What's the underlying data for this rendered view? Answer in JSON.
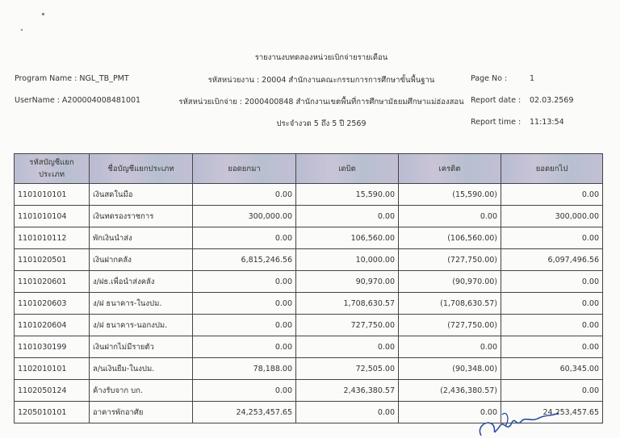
{
  "report": {
    "title": "รายงานงบทดลองหน่วยเบิกจ่ายรายเดือน",
    "program_name": "Program Name : NGL_TB_PMT",
    "user_name": "UserName : A20000400848​1001",
    "agency": "รหัสหน่วยงาน : 20004 สำนักงานคณะกรรมการการศึกษาขั้นพื้นฐาน",
    "disbursing_unit": "รหัสหน่วยเบิกจ่าย : 2000400848 สำนักงานเขตพื้นที่การศึกษามัธยมศึกษาแม่ฮ่องสอน",
    "period": "ประจำงวด 5 ถึง 5 ปี 2569",
    "page_no_label": "Page No :",
    "page_no": "1",
    "report_date_label": "Report date :",
    "report_date": "02.03.2569",
    "report_time_label": "Report time :",
    "report_time": "11:13:54"
  },
  "table": {
    "headers": [
      "รหัสบัญชีแยกประเภท",
      "ชื่อบัญชีแยกประเภท",
      "ยอดยกมา",
      "เดบิต",
      "เครดิต",
      "ยอดยกไป"
    ],
    "rows": [
      [
        "1101010101",
        "เงินสดในมือ",
        "0.00",
        "15,590.00",
        "(15,590.00)",
        "0.00"
      ],
      [
        "1101010104",
        "เงินทดรองราชการ",
        "300,000.00",
        "0.00",
        "0.00",
        "300,000.00"
      ],
      [
        "1101010112",
        "พักเงินนำส่ง",
        "0.00",
        "106,560.00",
        "(106,560.00)",
        "0.00"
      ],
      [
        "1101020501",
        "เงินฝากคลัง",
        "6,815,246.56",
        "10,000.00",
        "(727,750.00)",
        "6,097,496.56"
      ],
      [
        "1101020601",
        "ง/ฝธ.เพื่อนำส่งคลัง",
        "0.00",
        "90,970.00",
        "(90,970.00)",
        "0.00"
      ],
      [
        "1101020603",
        "ง/ฝ ธนาคาร-ในงปม.",
        "0.00",
        "1,708,630.57",
        "(1,708,630.57)",
        "0.00"
      ],
      [
        "1101020604",
        "ง/ฝ ธนาคาร-นอกงปม.",
        "0.00",
        "727,750.00",
        "(727,750.00)",
        "0.00"
      ],
      [
        "1101030199",
        "เงินฝากไม่มีรายตัว",
        "0.00",
        "0.00",
        "0.00",
        "0.00"
      ],
      [
        "1102010101",
        "ล/นเงินยืม-ในงปม.",
        "78,188.00",
        "72,505.00",
        "(90,348.00)",
        "60,345.00"
      ],
      [
        "1102050124",
        "ค้างรับจาก บก.",
        "0.00",
        "2,436,380.57",
        "(2,436,380.57)",
        "0.00"
      ],
      [
        "1205010101",
        "อาคารพักอาศัย",
        "24,253,457.65",
        "0.00",
        "0.00",
        "24,253,457.65"
      ]
    ]
  }
}
